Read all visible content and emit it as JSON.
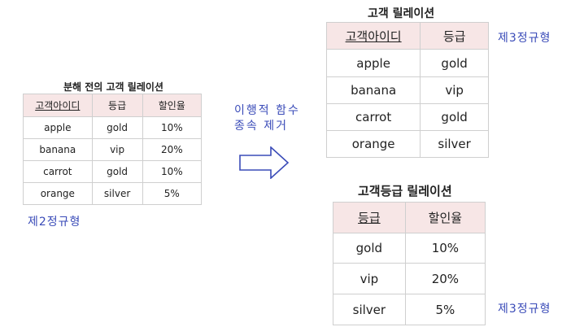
{
  "original": {
    "title": "분해 전의 고객 릴레이션",
    "headers": [
      "고객아이디",
      "등급",
      "할인율"
    ],
    "rows": [
      [
        "apple",
        "gold",
        "10%"
      ],
      [
        "banana",
        "vip",
        "20%"
      ],
      [
        "carrot",
        "gold",
        "10%"
      ],
      [
        "orange",
        "silver",
        "5%"
      ]
    ],
    "note": "제2정규형"
  },
  "transform": {
    "line1": "이행적 함수",
    "line2": "종속 제거"
  },
  "customer": {
    "title": "고객 릴레이션",
    "headers": [
      "고객아이디",
      "등급"
    ],
    "rows": [
      [
        "apple",
        "gold"
      ],
      [
        "banana",
        "vip"
      ],
      [
        "carrot",
        "gold"
      ],
      [
        "orange",
        "silver"
      ]
    ],
    "note": "제3정규형"
  },
  "grade": {
    "title": "고객등급 릴레이션",
    "headers": [
      "등급",
      "할인율"
    ],
    "rows": [
      [
        "gold",
        "10%"
      ],
      [
        "vip",
        "20%"
      ],
      [
        "silver",
        "5%"
      ]
    ],
    "note": "제3정규형"
  }
}
